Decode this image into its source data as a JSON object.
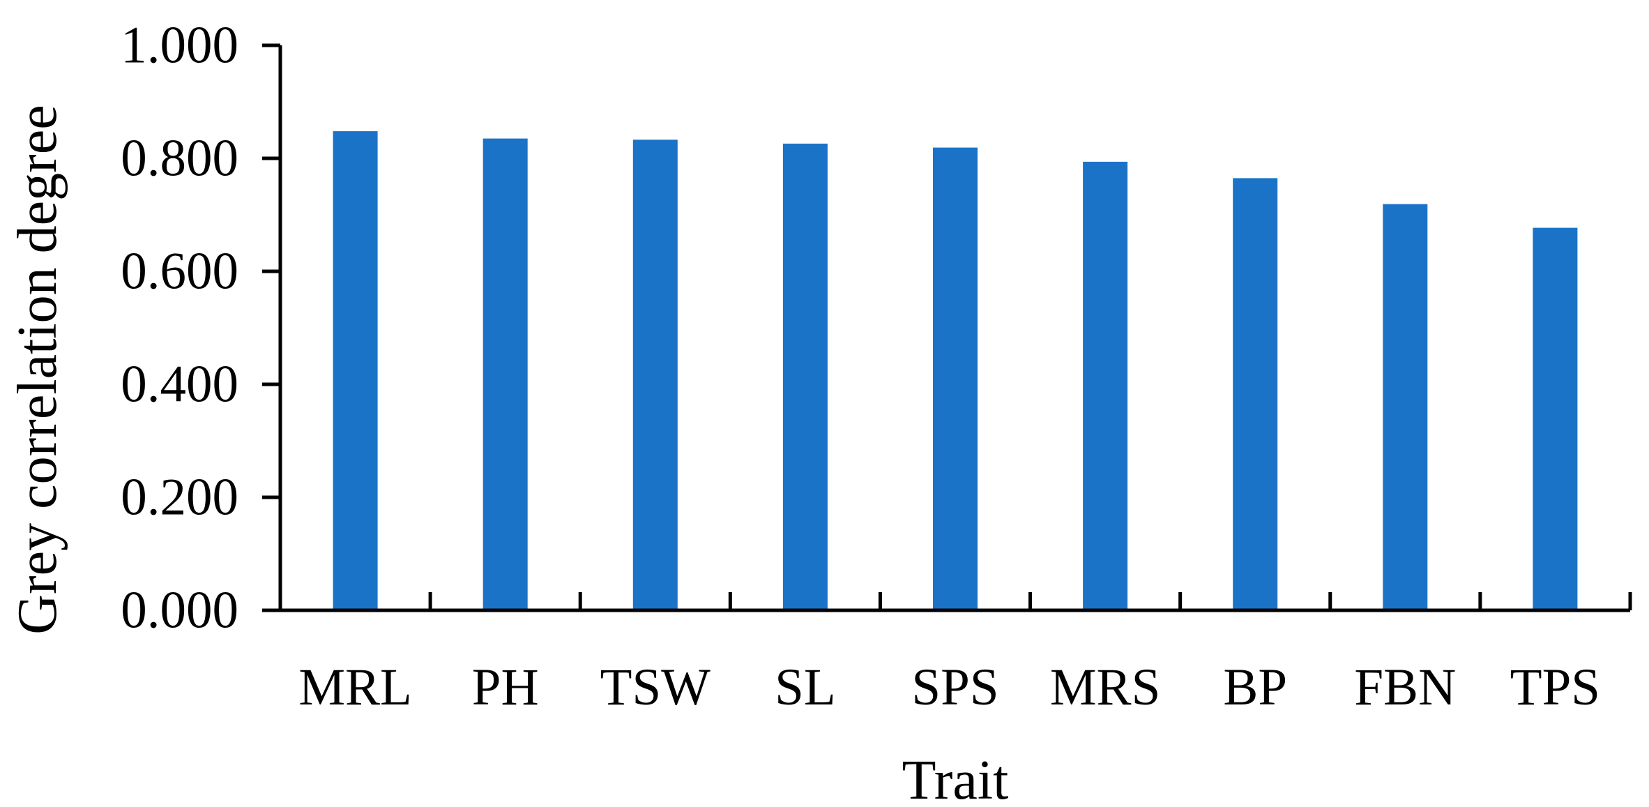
{
  "chart_data": {
    "type": "bar",
    "categories": [
      "MRL",
      "PH",
      "TSW",
      "SL",
      "SPS",
      "MRS",
      "BP",
      "FBN",
      "TPS"
    ],
    "series": [
      {
        "values": [
          0.848,
          0.835,
          0.833,
          0.826,
          0.819,
          0.794,
          0.765,
          0.719,
          0.677
        ]
      }
    ],
    "xlabel": "Trait",
    "ylabel": "Grey correlation degree",
    "ylim": [
      0,
      1.0
    ],
    "yticks": [
      0.0,
      0.2,
      0.4,
      0.6,
      0.8,
      1.0
    ],
    "ytick_labels": [
      "0.000",
      "0.200",
      "0.400",
      "0.600",
      "0.800",
      "1.000"
    ],
    "grid": false,
    "legend": "none",
    "colors": {
      "bar": "#1b73c8",
      "axis": "#000000"
    }
  }
}
